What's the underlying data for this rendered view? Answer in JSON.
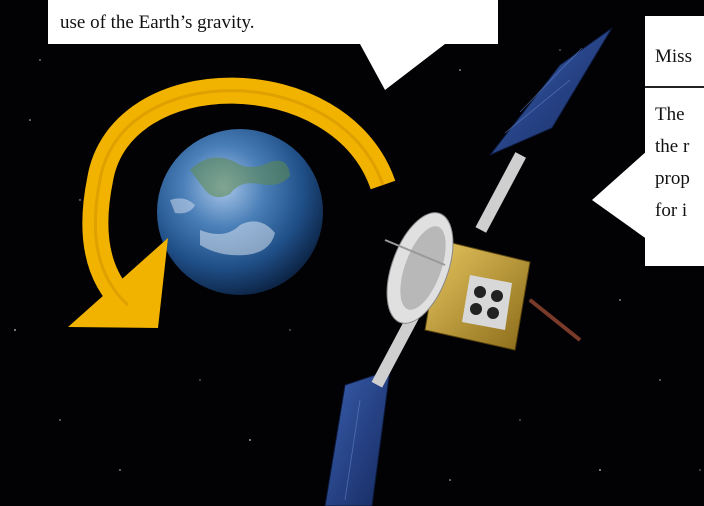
{
  "callouts": {
    "top": {
      "text": "use of the Earth’s gravity."
    },
    "right": {
      "heading": "Miss",
      "lines": [
        "The",
        "the r",
        "prop",
        "for i"
      ]
    }
  },
  "colors": {
    "space": "#020204",
    "arrow": "#f2b200",
    "earth_ocean": "#2a5e9a",
    "solar_panel": "#1f3f8a",
    "spacecraft_body": "#c9a23a",
    "callout_bg": "#ffffff"
  },
  "icons": {
    "orbit_arrow": "curved-arrow-icon"
  }
}
